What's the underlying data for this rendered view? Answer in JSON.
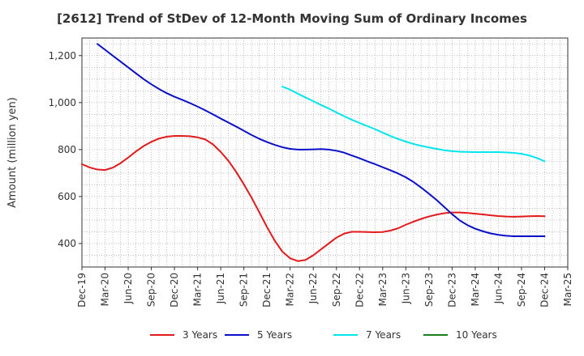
{
  "chart_data": {
    "type": "line",
    "title": "[2612]  Trend of StDev of 12-Month Moving Sum of Ordinary Incomes",
    "xlabel": "",
    "ylabel": "Amount (million yen)",
    "ylim": [
      300,
      1275
    ],
    "yticks": [
      400,
      600,
      800,
      1000,
      1200
    ],
    "ytick_labels": [
      "400",
      "600",
      "800",
      "1,000",
      "1,200"
    ],
    "xlim": [
      "2019-12",
      "2025-03"
    ],
    "xtick_labels": [
      "Dec-19",
      "Mar-20",
      "Jun-20",
      "Sep-20",
      "Dec-20",
      "Mar-21",
      "Jun-21",
      "Sep-21",
      "Dec-21",
      "Mar-22",
      "Jun-22",
      "Sep-22",
      "Dec-22",
      "Mar-23",
      "Jun-23",
      "Sep-23",
      "Dec-23",
      "Mar-24",
      "Jun-24",
      "Sep-24",
      "Dec-24",
      "Mar-25"
    ],
    "grid": true,
    "legend_position": "bottom",
    "series": [
      {
        "name": "3 Years",
        "color": "#e31a1c",
        "points": [
          [
            "2019-12",
            738
          ],
          [
            "2020-01",
            724
          ],
          [
            "2020-02",
            715
          ],
          [
            "2020-03",
            713
          ],
          [
            "2020-04",
            723
          ],
          [
            "2020-05",
            742
          ],
          [
            "2020-06",
            766
          ],
          [
            "2020-07",
            792
          ],
          [
            "2020-08",
            815
          ],
          [
            "2020-09",
            833
          ],
          [
            "2020-10",
            847
          ],
          [
            "2020-11",
            855
          ],
          [
            "2020-12",
            858
          ],
          [
            "2021-01",
            858
          ],
          [
            "2021-02",
            857
          ],
          [
            "2021-03",
            852
          ],
          [
            "2021-04",
            843
          ],
          [
            "2021-05",
            822
          ],
          [
            "2021-06",
            790
          ],
          [
            "2021-07",
            752
          ],
          [
            "2021-08",
            705
          ],
          [
            "2021-09",
            652
          ],
          [
            "2021-10",
            595
          ],
          [
            "2021-11",
            533
          ],
          [
            "2021-12",
            470
          ],
          [
            "2022-01",
            412
          ],
          [
            "2022-02",
            365
          ],
          [
            "2022-03",
            337
          ],
          [
            "2022-04",
            325
          ],
          [
            "2022-05",
            330
          ],
          [
            "2022-06",
            350
          ],
          [
            "2022-07",
            375
          ],
          [
            "2022-08",
            400
          ],
          [
            "2022-09",
            425
          ],
          [
            "2022-10",
            442
          ],
          [
            "2022-11",
            450
          ],
          [
            "2022-12",
            450
          ],
          [
            "2023-01",
            449
          ],
          [
            "2023-02",
            448
          ],
          [
            "2023-03",
            449
          ],
          [
            "2023-04",
            455
          ],
          [
            "2023-05",
            465
          ],
          [
            "2023-06",
            480
          ],
          [
            "2023-07",
            493
          ],
          [
            "2023-08",
            505
          ],
          [
            "2023-09",
            515
          ],
          [
            "2023-10",
            523
          ],
          [
            "2023-11",
            529
          ],
          [
            "2023-12",
            532
          ],
          [
            "2024-01",
            532
          ],
          [
            "2024-02",
            530
          ],
          [
            "2024-03",
            527
          ],
          [
            "2024-04",
            524
          ],
          [
            "2024-05",
            520
          ],
          [
            "2024-06",
            517
          ],
          [
            "2024-07",
            515
          ],
          [
            "2024-08",
            514
          ],
          [
            "2024-09",
            515
          ],
          [
            "2024-10",
            516
          ],
          [
            "2024-11",
            517
          ],
          [
            "2024-12",
            516
          ]
        ]
      },
      {
        "name": "5 Years",
        "color": "#0a10c8",
        "points": [
          [
            "2020-02",
            1250
          ],
          [
            "2020-03",
            1225
          ],
          [
            "2020-04",
            1200
          ],
          [
            "2020-05",
            1175
          ],
          [
            "2020-06",
            1150
          ],
          [
            "2020-07",
            1125
          ],
          [
            "2020-08",
            1100
          ],
          [
            "2020-09",
            1078
          ],
          [
            "2020-10",
            1058
          ],
          [
            "2020-11",
            1040
          ],
          [
            "2020-12",
            1025
          ],
          [
            "2021-01",
            1012
          ],
          [
            "2021-02",
            998
          ],
          [
            "2021-03",
            983
          ],
          [
            "2021-04",
            967
          ],
          [
            "2021-05",
            950
          ],
          [
            "2021-06",
            932
          ],
          [
            "2021-07",
            915
          ],
          [
            "2021-08",
            898
          ],
          [
            "2021-09",
            880
          ],
          [
            "2021-10",
            862
          ],
          [
            "2021-11",
            846
          ],
          [
            "2021-12",
            832
          ],
          [
            "2022-01",
            820
          ],
          [
            "2022-02",
            810
          ],
          [
            "2022-03",
            803
          ],
          [
            "2022-04",
            800
          ],
          [
            "2022-05",
            800
          ],
          [
            "2022-06",
            801
          ],
          [
            "2022-07",
            802
          ],
          [
            "2022-08",
            800
          ],
          [
            "2022-09",
            795
          ],
          [
            "2022-10",
            787
          ],
          [
            "2022-11",
            775
          ],
          [
            "2022-12",
            763
          ],
          [
            "2023-01",
            750
          ],
          [
            "2023-02",
            738
          ],
          [
            "2023-03",
            725
          ],
          [
            "2023-04",
            712
          ],
          [
            "2023-05",
            698
          ],
          [
            "2023-06",
            682
          ],
          [
            "2023-07",
            662
          ],
          [
            "2023-08",
            638
          ],
          [
            "2023-09",
            612
          ],
          [
            "2023-10",
            585
          ],
          [
            "2023-11",
            555
          ],
          [
            "2023-12",
            525
          ],
          [
            "2024-01",
            498
          ],
          [
            "2024-02",
            478
          ],
          [
            "2024-03",
            463
          ],
          [
            "2024-04",
            452
          ],
          [
            "2024-05",
            443
          ],
          [
            "2024-06",
            437
          ],
          [
            "2024-07",
            433
          ],
          [
            "2024-08",
            431
          ],
          [
            "2024-09",
            431
          ],
          [
            "2024-10",
            431
          ],
          [
            "2024-11",
            431
          ],
          [
            "2024-12",
            431
          ]
        ]
      },
      {
        "name": "7 Years",
        "color": "#00e5ee",
        "points": [
          [
            "2022-02",
            1068
          ],
          [
            "2022-03",
            1055
          ],
          [
            "2022-04",
            1038
          ],
          [
            "2022-05",
            1022
          ],
          [
            "2022-06",
            1006
          ],
          [
            "2022-07",
            990
          ],
          [
            "2022-08",
            975
          ],
          [
            "2022-09",
            958
          ],
          [
            "2022-10",
            942
          ],
          [
            "2022-11",
            927
          ],
          [
            "2022-12",
            913
          ],
          [
            "2023-01",
            900
          ],
          [
            "2023-02",
            887
          ],
          [
            "2023-03",
            872
          ],
          [
            "2023-04",
            858
          ],
          [
            "2023-05",
            845
          ],
          [
            "2023-06",
            834
          ],
          [
            "2023-07",
            824
          ],
          [
            "2023-08",
            816
          ],
          [
            "2023-09",
            809
          ],
          [
            "2023-10",
            803
          ],
          [
            "2023-11",
            797
          ],
          [
            "2023-12",
            793
          ],
          [
            "2024-01",
            791
          ],
          [
            "2024-02",
            790
          ],
          [
            "2024-03",
            789
          ],
          [
            "2024-04",
            789
          ],
          [
            "2024-05",
            789
          ],
          [
            "2024-06",
            789
          ],
          [
            "2024-07",
            788
          ],
          [
            "2024-08",
            786
          ],
          [
            "2024-09",
            782
          ],
          [
            "2024-10",
            775
          ],
          [
            "2024-11",
            764
          ],
          [
            "2024-12",
            750
          ]
        ]
      },
      {
        "name": "10 Years",
        "color": "#1a7f1a",
        "points": []
      }
    ]
  }
}
